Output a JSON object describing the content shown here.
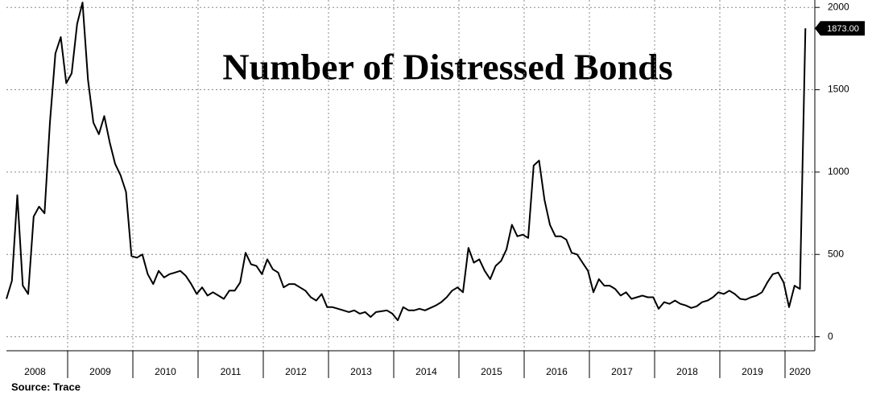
{
  "chart_data": {
    "type": "line",
    "title": "Number of Distressed Bonds",
    "source": "Source: Trace",
    "categories": [
      "2008",
      "2009",
      "2010",
      "2011",
      "2012",
      "2013",
      "2014",
      "2015",
      "2016",
      "2017",
      "2018",
      "2019",
      "2020"
    ],
    "series": [
      {
        "color": "#000000",
        "values": [
          [
            230,
            340,
            860,
            310,
            260,
            730,
            790,
            750,
            1300,
            1720,
            1820,
            1540
          ],
          [
            1600,
            1900,
            2030,
            1560,
            1300,
            1230,
            1340,
            1180,
            1050,
            980,
            880,
            490
          ],
          [
            480,
            500,
            380,
            320,
            400,
            360,
            380,
            390,
            400,
            370,
            320,
            260
          ],
          [
            300,
            250,
            270,
            250,
            230,
            280,
            280,
            330,
            510,
            440,
            430,
            380
          ],
          [
            470,
            410,
            390,
            300,
            320,
            320,
            300,
            280,
            240,
            220,
            260,
            180
          ],
          [
            180,
            170,
            160,
            150,
            160,
            140,
            150,
            120,
            150,
            155,
            160,
            140
          ],
          [
            100,
            180,
            160,
            160,
            170,
            160,
            175,
            190,
            210,
            240,
            280,
            300
          ],
          [
            270,
            540,
            450,
            470,
            400,
            350,
            430,
            460,
            530,
            680,
            610,
            620
          ],
          [
            600,
            1040,
            1070,
            830,
            680,
            610,
            610,
            590,
            510,
            500,
            450,
            400
          ],
          [
            270,
            350,
            310,
            310,
            290,
            250,
            270,
            230,
            240,
            250,
            240,
            240
          ],
          [
            170,
            210,
            200,
            220,
            200,
            190,
            175,
            185,
            210,
            220,
            240,
            270
          ],
          [
            260,
            280,
            260,
            230,
            225,
            240,
            250,
            270,
            330,
            380,
            390,
            330
          ],
          [
            180,
            310,
            290,
            1873
          ]
        ],
        "value_labels": [
          [
            null,
            null,
            null,
            null,
            null,
            null,
            null,
            null,
            null,
            null,
            null,
            null
          ],
          [
            null,
            null,
            null,
            null,
            null,
            null,
            null,
            null,
            null,
            null,
            null,
            null
          ],
          [
            null,
            null,
            null,
            null,
            null,
            null,
            null,
            null,
            null,
            null,
            null,
            null
          ],
          [
            null,
            null,
            null,
            null,
            null,
            null,
            null,
            null,
            null,
            null,
            null,
            null
          ],
          [
            null,
            null,
            null,
            null,
            null,
            null,
            null,
            null,
            null,
            null,
            null,
            null
          ],
          [
            null,
            null,
            null,
            null,
            null,
            null,
            null,
            null,
            null,
            null,
            null,
            null
          ],
          [
            null,
            null,
            null,
            null,
            null,
            null,
            null,
            null,
            null,
            null,
            null,
            null
          ],
          [
            null,
            null,
            null,
            null,
            null,
            null,
            null,
            null,
            null,
            null,
            null,
            null
          ],
          [
            null,
            null,
            null,
            null,
            null,
            null,
            null,
            null,
            null,
            null,
            null,
            null
          ],
          [
            null,
            null,
            null,
            null,
            null,
            null,
            null,
            null,
            null,
            null,
            null,
            null
          ],
          [
            null,
            null,
            null,
            null,
            null,
            null,
            null,
            null,
            null,
            null,
            null,
            null
          ],
          [
            null,
            null,
            null,
            null,
            null,
            null,
            null,
            null,
            null,
            null,
            null,
            null
          ],
          [
            null,
            null,
            null,
            "1873.00"
          ]
        ]
      }
    ],
    "ylim": [
      -85,
      2045
    ],
    "yticks": [
      0,
      500,
      1000,
      1500,
      2000
    ],
    "grid": true
  }
}
